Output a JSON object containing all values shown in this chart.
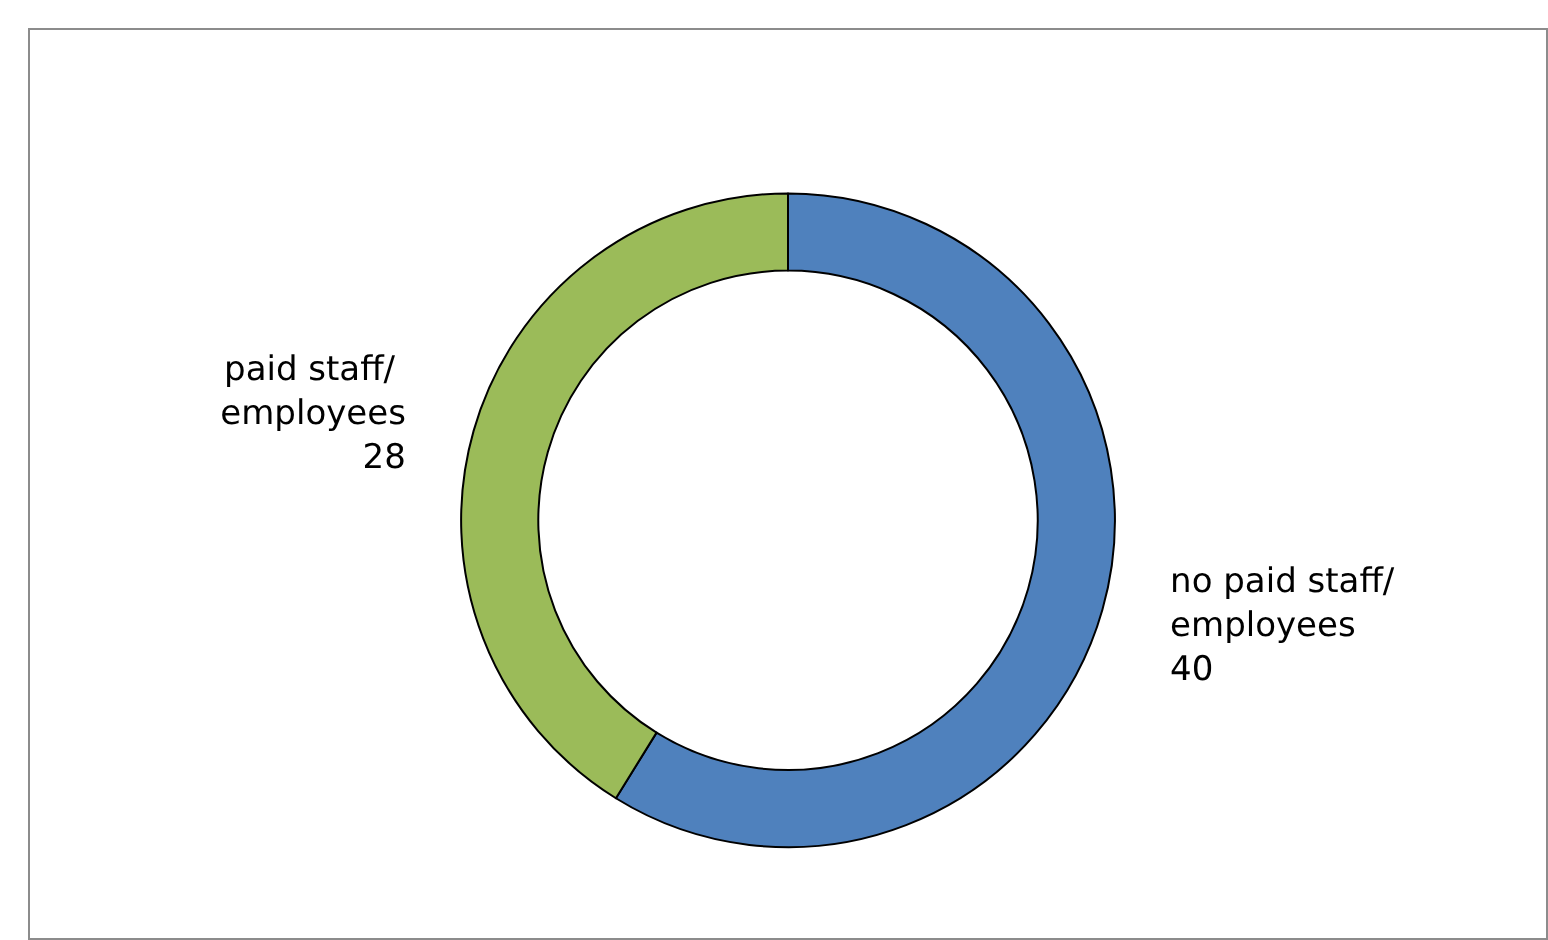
{
  "chart_data": {
    "type": "donut",
    "categories": [
      "no paid staff/ employees",
      "paid staff/ employees"
    ],
    "values": [
      40,
      28
    ],
    "colors": [
      "#4f81bd",
      "#9bbb59"
    ],
    "data_labels": true,
    "legend": false
  }
}
